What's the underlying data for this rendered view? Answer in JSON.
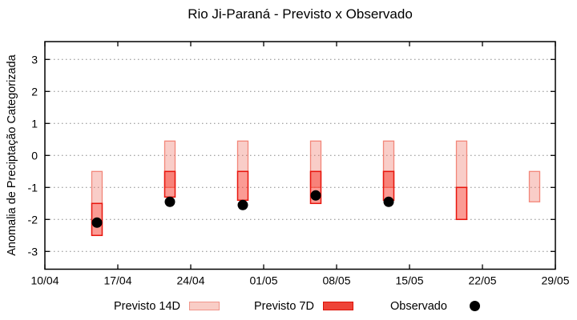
{
  "title": "Rio Ji-Paraná - Previsto x Observado",
  "chart_data": {
    "type": "bar",
    "title": "Rio Ji-Paraná - Previsto x Observado",
    "xlabel": "",
    "ylabel": "Anomalia de Preciptação Categorizada",
    "ylim": [
      -3.55,
      3.55
    ],
    "yticks": [
      "3",
      "2",
      "1",
      "0",
      "-1",
      "-2",
      "-3"
    ],
    "ytick_values": [
      3,
      2,
      1,
      0,
      -1,
      -2,
      -3
    ],
    "xtick_labels": [
      "10/04",
      "17/04",
      "24/04",
      "01/05",
      "08/05",
      "15/05",
      "22/05",
      "29/05"
    ],
    "xtick_days": [
      0,
      7,
      14,
      21,
      28,
      35,
      42,
      49
    ],
    "grid": "horizontal dotted gray",
    "legend_position": "below plot, centered",
    "legend": [
      {
        "label": "Previsto 14D",
        "type": "box",
        "fill": "#f9cdc6",
        "border": "#f0958b"
      },
      {
        "label": "Previsto 7D",
        "type": "box",
        "fill": "#ee4438",
        "border": "#dd1309"
      },
      {
        "label": "Observado",
        "type": "dot",
        "color": "#000000"
      }
    ],
    "series": [
      {
        "name": "Previsto 14D",
        "style": "translucent light pink box, salmon border",
        "intervals": [
          {
            "date": "15/04",
            "day": 5,
            "hi": -0.5,
            "lo": -1.5
          },
          {
            "date": "22/04",
            "day": 12,
            "hi": 0.45,
            "lo": -1.0
          },
          {
            "date": "29/04",
            "day": 19,
            "hi": 0.45,
            "lo": -0.5
          },
          {
            "date": "06/05",
            "day": 26,
            "hi": 0.45,
            "lo": -1.0
          },
          {
            "date": "13/05",
            "day": 33,
            "hi": 0.45,
            "lo": -1.0
          },
          {
            "date": "20/05",
            "day": 40,
            "hi": 0.45,
            "lo": -1.0
          },
          {
            "date": "27/05",
            "day": 47,
            "hi": -0.5,
            "lo": -1.45
          }
        ]
      },
      {
        "name": "Previsto 7D",
        "style": "translucent red box, bright red border, darkens where it overlaps 14D",
        "intervals": [
          {
            "date": "15/04",
            "day": 5,
            "hi": -1.5,
            "lo": -2.5
          },
          {
            "date": "22/04",
            "day": 12,
            "hi": -0.5,
            "lo": -1.3
          },
          {
            "date": "29/04",
            "day": 19,
            "hi": -0.5,
            "lo": -1.4
          },
          {
            "date": "06/05",
            "day": 26,
            "hi": -0.5,
            "lo": -1.5
          },
          {
            "date": "13/05",
            "day": 33,
            "hi": -0.5,
            "lo": -1.4
          },
          {
            "date": "20/05",
            "day": 40,
            "hi": -1.0,
            "lo": -2.0
          },
          {
            "date": "27/05",
            "day": 47,
            "hi": null,
            "lo": null
          }
        ]
      },
      {
        "name": "Observado",
        "style": "black filled circle",
        "points": [
          {
            "date": "15/04",
            "day": 5,
            "value": -2.1
          },
          {
            "date": "22/04",
            "day": 12,
            "value": -1.45
          },
          {
            "date": "29/04",
            "day": 19,
            "value": -1.55
          },
          {
            "date": "06/05",
            "day": 26,
            "value": -1.25
          },
          {
            "date": "13/05",
            "day": 33,
            "value": -1.45
          },
          {
            "date": "20/05",
            "day": 40,
            "value": null
          },
          {
            "date": "27/05",
            "day": 47,
            "value": null
          }
        ]
      }
    ]
  },
  "colors": {
    "background": "#ffffff",
    "axis": "#000000",
    "grid": "#888888",
    "p14_fill_rgba": "rgba(239,112,96,0.35)",
    "p14_border": "rgba(241,118,102,0.85)",
    "p7_fill_rgba": "rgba(248,55,42,0.50)",
    "p7_border": "#e8150d",
    "observed": "#000000"
  }
}
